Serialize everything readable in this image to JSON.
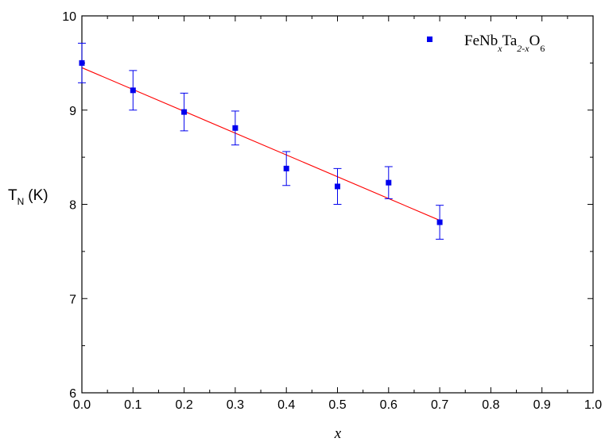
{
  "chart_data": {
    "type": "scatter",
    "xlabel": "x",
    "ylabel": {
      "main": "T",
      "sub": "N",
      "unit": "(K)"
    },
    "xlim": [
      0.0,
      1.0
    ],
    "ylim": [
      6,
      10
    ],
    "x_ticks": [
      "0.0",
      "0.1",
      "0.2",
      "0.3",
      "0.4",
      "0.5",
      "0.6",
      "0.7",
      "0.8",
      "0.9",
      "1.0"
    ],
    "y_ticks": [
      "6",
      "7",
      "8",
      "9",
      "10"
    ],
    "grid": false,
    "legend_position": "top-right",
    "legend": {
      "base": "FeNb",
      "sub1": "x",
      "mid": "Ta",
      "sub2": "2-x",
      "end": "O",
      "sub3": "6"
    },
    "series": [
      {
        "color": "#0000ee",
        "marker": "square",
        "x": [
          0.0,
          0.1,
          0.2,
          0.3,
          0.4,
          0.5,
          0.6,
          0.7
        ],
        "y": [
          9.5,
          9.21,
          8.98,
          8.81,
          8.38,
          8.19,
          8.23,
          7.81
        ],
        "yerr": [
          0.21,
          0.21,
          0.2,
          0.18,
          0.18,
          0.19,
          0.17,
          0.18
        ]
      }
    ],
    "fit_line": {
      "color": "#ff0000",
      "x": [
        0.0,
        0.7
      ],
      "y": [
        9.45,
        7.83
      ]
    }
  }
}
